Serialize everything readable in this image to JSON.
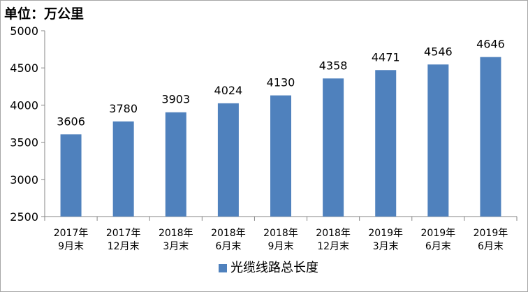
{
  "unit_label": "单位：万公里",
  "chart_data": {
    "type": "bar",
    "categories": [
      [
        "2017年",
        "9月末"
      ],
      [
        "2017年",
        "12月末"
      ],
      [
        "2018年",
        "3月末"
      ],
      [
        "2018年",
        "6月末"
      ],
      [
        "2018年",
        "9月末"
      ],
      [
        "2018年",
        "12月末"
      ],
      [
        "2019年",
        "3月末"
      ],
      [
        "2019年",
        "6月末"
      ],
      [
        "2019年",
        "6月末"
      ]
    ],
    "series": [
      {
        "name": "光缆线路总长度",
        "values": [
          3606,
          3780,
          3903,
          4024,
          4130,
          4358,
          4471,
          4546,
          4646
        ],
        "color": "#4f81bd"
      }
    ],
    "ylim": [
      2500,
      5000
    ],
    "yticks": [
      2500,
      3000,
      3500,
      4000,
      4500,
      5000
    ],
    "data_labels": true,
    "grid": false,
    "legend_position": "bottom"
  }
}
